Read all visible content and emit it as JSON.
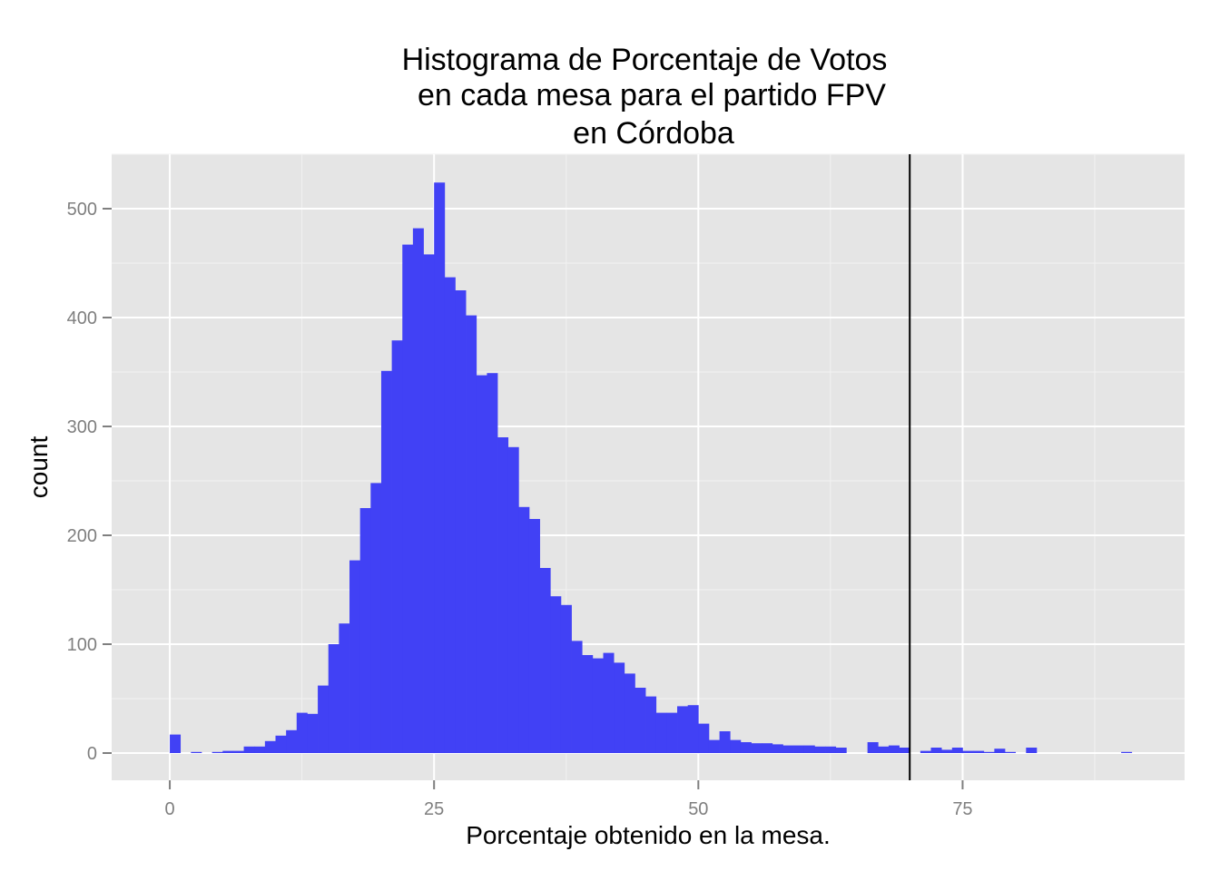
{
  "chart_data": {
    "type": "bar",
    "title": [
      "Histograma de Porcentaje de Votos",
      "en cada mesa para el partido FPV",
      "en Córdoba"
    ],
    "xlabel": "Porcentaje obtenido en la mesa.",
    "ylabel": "count",
    "xlim": [
      -5.5,
      96
    ],
    "ylim": [
      -25,
      550
    ],
    "x_ticks": [
      0,
      25,
      50,
      75
    ],
    "y_ticks": [
      0,
      100,
      200,
      300,
      400,
      500
    ],
    "grid": true,
    "bin_width": 1,
    "bins_start": [
      0,
      1,
      2,
      3,
      4,
      5,
      6,
      7,
      8,
      9,
      10,
      11,
      12,
      13,
      14,
      15,
      16,
      17,
      18,
      19,
      20,
      21,
      22,
      23,
      24,
      25,
      26,
      27,
      28,
      29,
      30,
      31,
      32,
      33,
      34,
      35,
      36,
      37,
      38,
      39,
      40,
      41,
      42,
      43,
      44,
      45,
      46,
      47,
      48,
      49,
      50,
      51,
      52,
      53,
      54,
      55,
      56,
      57,
      58,
      59,
      60,
      61,
      62,
      63,
      64,
      65,
      66,
      67,
      68,
      69,
      70,
      71,
      72,
      73,
      74,
      75,
      76,
      77,
      78,
      79,
      80,
      81,
      82,
      83,
      84,
      85,
      86,
      87,
      88,
      89,
      90
    ],
    "values": [
      17,
      0,
      1,
      0,
      1,
      2,
      2,
      6,
      6,
      11,
      16,
      21,
      37,
      36,
      62,
      100,
      119,
      177,
      225,
      248,
      351,
      379,
      467,
      482,
      458,
      524,
      437,
      425,
      402,
      347,
      349,
      290,
      281,
      226,
      215,
      170,
      144,
      136,
      103,
      90,
      87,
      92,
      83,
      73,
      60,
      52,
      37,
      37,
      43,
      44,
      27,
      12,
      20,
      12,
      10,
      9,
      9,
      8,
      7,
      7,
      7,
      6,
      6,
      5,
      0,
      0,
      10,
      6,
      7,
      5,
      0,
      2,
      5,
      3,
      5,
      2,
      2,
      1,
      4,
      1,
      0,
      5,
      0,
      0,
      0,
      0,
      0,
      0,
      0,
      0,
      1
    ],
    "reference_line_x": 70,
    "colors": {
      "bar": "#4141f5",
      "panel": "#e5e5e5",
      "grid_major": "#ffffff",
      "grid_minor": "#f2f2f2",
      "ref_line": "#000000",
      "tick_text": "#7f7f7f"
    }
  }
}
